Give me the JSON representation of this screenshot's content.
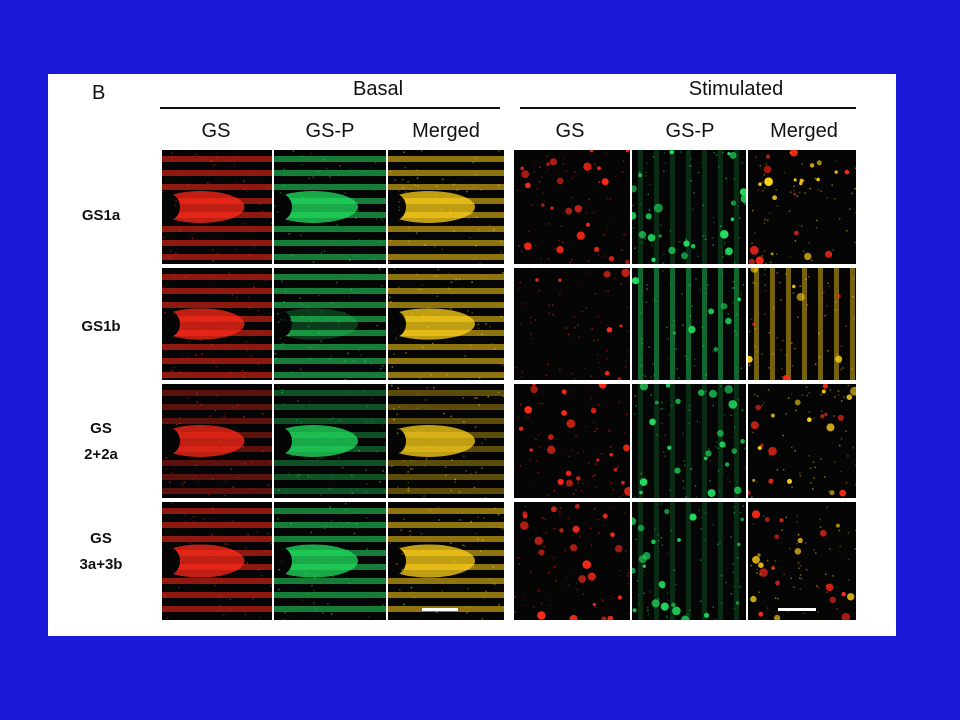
{
  "panel_label": "B",
  "groups": [
    {
      "title": "Basal",
      "columns": [
        "GS",
        "GS-P",
        "Merged"
      ]
    },
    {
      "title": "Stimulated",
      "columns": [
        "GS",
        "GS-P",
        "Merged"
      ]
    }
  ],
  "rows": [
    {
      "label_lines": [
        "GS1a"
      ]
    },
    {
      "label_lines": [
        "GS1b"
      ]
    },
    {
      "label_lines": [
        "GS",
        "2+2a"
      ]
    },
    {
      "label_lines": [
        "GS",
        "3a+3b"
      ]
    }
  ],
  "colors": {
    "background": "#1a1ad8",
    "gs_channel": "#ff2a1a",
    "gsp_channel": "#22e060",
    "merged_channel": "#ffd21a"
  }
}
